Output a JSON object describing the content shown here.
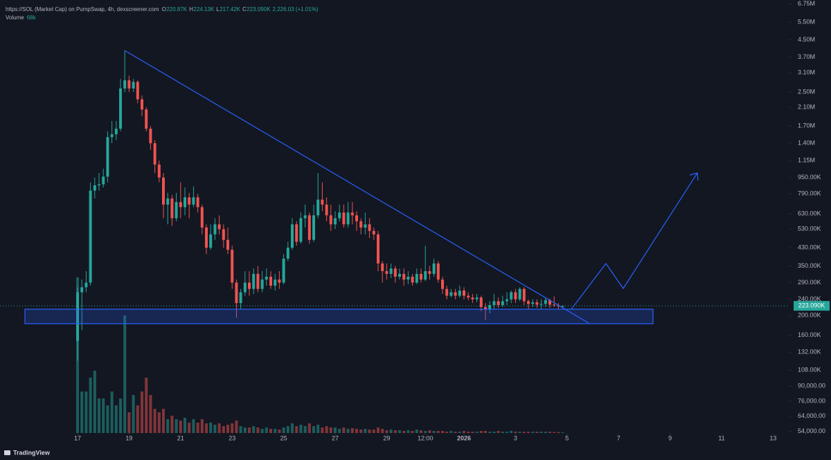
{
  "chart_data": {
    "type": "candlestick",
    "header": {
      "title": "https://SOL (Market Cap) on PumpSwap, 4h, dexscreener.com",
      "ohlc": [
        {
          "key": "O",
          "value": "220.87K"
        },
        {
          "key": "H",
          "value": "224.13K"
        },
        {
          "key": "L",
          "value": "217.42K"
        },
        {
          "key": "C",
          "value": "223.090K"
        }
      ],
      "change": "2,226.03 (+1.01%)"
    },
    "last_price_label": "223.090K",
    "up_color": "#26a69a",
    "down_color": "#ef5350",
    "log_scale": true,
    "xlim": [
      -3.011,
      27.634
    ],
    "xticks": [
      {
        "value": 0,
        "label": "17"
      },
      {
        "value": 2,
        "label": "19"
      },
      {
        "value": 4,
        "label": "21"
      },
      {
        "value": 6,
        "label": "23"
      },
      {
        "value": 8,
        "label": "25"
      },
      {
        "value": 10,
        "label": "27"
      },
      {
        "value": 12,
        "label": "29"
      },
      {
        "value": 13.5,
        "label": "12:00"
      },
      {
        "value": 15,
        "label": "2026"
      },
      {
        "value": 17,
        "label": "3"
      },
      {
        "value": 19,
        "label": "5"
      },
      {
        "value": 21,
        "label": "7"
      },
      {
        "value": 23,
        "label": "9"
      },
      {
        "value": 25,
        "label": "11"
      },
      {
        "value": 27,
        "label": "13"
      }
    ],
    "ylim": [
      53000,
      7062000
    ],
    "yticks": [
      {
        "value": 6750000,
        "label": "6.75M"
      },
      {
        "value": 5500000,
        "label": "5.50M"
      },
      {
        "value": 4500000,
        "label": "4.50M"
      },
      {
        "value": 3700000,
        "label": "3.70M"
      },
      {
        "value": 3100000,
        "label": "3.10M"
      },
      {
        "value": 2500000,
        "label": "2.50M"
      },
      {
        "value": 2100000,
        "label": "2.10M"
      },
      {
        "value": 1700000,
        "label": "1.70M"
      },
      {
        "value": 1400000,
        "label": "1.40M"
      },
      {
        "value": 1150000,
        "label": "1.15M"
      },
      {
        "value": 950000,
        "label": "950.00K"
      },
      {
        "value": 790000,
        "label": "790.00K"
      },
      {
        "value": 630000,
        "label": "630.00K"
      },
      {
        "value": 530000,
        "label": "530.00K"
      },
      {
        "value": 430000,
        "label": "430.00K"
      },
      {
        "value": 350000,
        "label": "350.00K"
      },
      {
        "value": 290000,
        "label": "290.00K"
      },
      {
        "value": 240000,
        "label": "240.00K"
      },
      {
        "value": 200000,
        "label": "200.00K"
      },
      {
        "value": 160000,
        "label": "160.00K"
      },
      {
        "value": 132000,
        "label": "132.00K"
      },
      {
        "value": 108000,
        "label": "108.00K"
      },
      {
        "value": 90000,
        "label": "90,000.00"
      },
      {
        "value": 76000,
        "label": "76,000.00"
      },
      {
        "value": 64000,
        "label": "64,000.00"
      },
      {
        "value": 54000,
        "label": "54,000.00"
      }
    ],
    "x": [
      0,
      0.167,
      0.333,
      0.5,
      0.667,
      0.833,
      1,
      1.167,
      1.333,
      1.5,
      1.667,
      1.833,
      2,
      2.167,
      2.333,
      2.5,
      2.667,
      2.833,
      3,
      3.167,
      3.333,
      3.5,
      3.667,
      3.833,
      4,
      4.167,
      4.333,
      4.5,
      4.667,
      4.833,
      5,
      5.167,
      5.333,
      5.5,
      5.667,
      5.833,
      6,
      6.167,
      6.333,
      6.5,
      6.667,
      6.833,
      7,
      7.167,
      7.333,
      7.5,
      7.667,
      7.833,
      8,
      8.167,
      8.333,
      8.5,
      8.667,
      8.833,
      9,
      9.167,
      9.333,
      9.5,
      9.667,
      9.833,
      10,
      10.167,
      10.333,
      10.5,
      10.667,
      10.833,
      11,
      11.167,
      11.333,
      11.5,
      11.667,
      11.833,
      12,
      12.167,
      12.333,
      12.5,
      12.667,
      12.833,
      13,
      13.167,
      13.333,
      13.5,
      13.667,
      13.833,
      14,
      14.167,
      14.333,
      14.5,
      14.667,
      14.833,
      15,
      15.167,
      15.333,
      15.5,
      15.667,
      15.833,
      16,
      16.167,
      16.333,
      16.5,
      16.667,
      16.833,
      17,
      17.167,
      17.333,
      17.5,
      17.667,
      17.833,
      18,
      18.167,
      18.333,
      18.5,
      18.667,
      18.833
    ],
    "open": [
      150000,
      260000,
      275000,
      290000,
      820000,
      870000,
      880000,
      960000,
      1500000,
      1550000,
      1650000,
      2600000,
      2850000,
      2600000,
      2800000,
      2300000,
      2050000,
      1650000,
      1400000,
      1100000,
      950000,
      700000,
      750000,
      600000,
      720000,
      680000,
      760000,
      700000,
      760000,
      680000,
      540000,
      430000,
      500000,
      560000,
      530000,
      470000,
      420000,
      290000,
      230000,
      260000,
      290000,
      270000,
      320000,
      270000,
      300000,
      310000,
      280000,
      300000,
      290000,
      380000,
      430000,
      560000,
      460000,
      600000,
      620000,
      470000,
      620000,
      740000,
      700000,
      620000,
      560000,
      600000,
      640000,
      560000,
      640000,
      620000,
      580000,
      540000,
      560000,
      520000,
      500000,
      360000,
      330000,
      320000,
      340000,
      310000,
      320000,
      300000,
      310000,
      290000,
      320000,
      300000,
      330000,
      320000,
      360000,
      300000,
      270000,
      250000,
      260000,
      250000,
      265000,
      250000,
      245000,
      240000,
      245000,
      220000,
      215000,
      225000,
      235000,
      225000,
      235000,
      240000,
      260000,
      240000,
      270000,
      235000,
      228000,
      232000,
      226000,
      228000,
      238000,
      226000,
      224000,
      220870
    ],
    "high": [
      275000,
      300000,
      330000,
      900000,
      950000,
      1000000,
      1050000,
      1600000,
      1800000,
      1800000,
      2900000,
      4000000,
      3000000,
      2900000,
      2850000,
      2400000,
      2100000,
      1700000,
      1450000,
      1150000,
      1000000,
      800000,
      780000,
      800000,
      900000,
      850000,
      800000,
      860000,
      790000,
      700000,
      560000,
      560000,
      600000,
      620000,
      560000,
      540000,
      440000,
      300000,
      270000,
      330000,
      330000,
      340000,
      350000,
      330000,
      340000,
      330000,
      320000,
      330000,
      400000,
      460000,
      600000,
      580000,
      640000,
      700000,
      640000,
      700000,
      1000000,
      900000,
      760000,
      700000,
      650000,
      700000,
      700000,
      720000,
      720000,
      650000,
      600000,
      640000,
      600000,
      540000,
      520000,
      370000,
      360000,
      360000,
      350000,
      340000,
      340000,
      330000,
      320000,
      340000,
      340000,
      440000,
      350000,
      380000,
      370000,
      310000,
      280000,
      270000,
      270000,
      280000,
      275000,
      260000,
      255000,
      255000,
      250000,
      230000,
      235000,
      255000,
      245000,
      250000,
      260000,
      265000,
      270000,
      275000,
      275000,
      240000,
      240000,
      240000,
      240000,
      245000,
      242000,
      248000,
      230000,
      224130
    ],
    "low": [
      120000,
      170000,
      260000,
      280000,
      750000,
      820000,
      850000,
      900000,
      1400000,
      1450000,
      1600000,
      2500000,
      2500000,
      2500000,
      2200000,
      1900000,
      1600000,
      1300000,
      1000000,
      900000,
      600000,
      560000,
      550000,
      580000,
      600000,
      620000,
      600000,
      680000,
      640000,
      500000,
      400000,
      420000,
      470000,
      500000,
      430000,
      400000,
      270000,
      195000,
      215000,
      250000,
      250000,
      255000,
      260000,
      260000,
      280000,
      270000,
      265000,
      270000,
      285000,
      370000,
      420000,
      440000,
      450000,
      540000,
      450000,
      460000,
      600000,
      650000,
      580000,
      520000,
      530000,
      580000,
      540000,
      540000,
      560000,
      520000,
      500000,
      500000,
      480000,
      470000,
      330000,
      290000,
      300000,
      305000,
      290000,
      300000,
      280000,
      285000,
      280000,
      285000,
      290000,
      295000,
      300000,
      310000,
      290000,
      255000,
      240000,
      245000,
      240000,
      245000,
      240000,
      238000,
      230000,
      232000,
      210000,
      190000,
      205000,
      215000,
      218000,
      220000,
      225000,
      230000,
      230000,
      235000,
      225000,
      215000,
      220000,
      218000,
      215000,
      220000,
      218000,
      220000,
      216000,
      217420
    ],
    "close": [
      260000,
      275000,
      290000,
      820000,
      870000,
      880000,
      960000,
      1500000,
      1550000,
      1650000,
      2600000,
      2850000,
      2600000,
      2800000,
      2300000,
      2050000,
      1650000,
      1400000,
      1100000,
      950000,
      700000,
      750000,
      600000,
      720000,
      680000,
      760000,
      700000,
      760000,
      680000,
      540000,
      430000,
      500000,
      560000,
      530000,
      470000,
      420000,
      290000,
      230000,
      260000,
      290000,
      270000,
      320000,
      270000,
      300000,
      310000,
      280000,
      300000,
      290000,
      380000,
      430000,
      560000,
      460000,
      600000,
      620000,
      470000,
      620000,
      740000,
      700000,
      620000,
      560000,
      600000,
      640000,
      560000,
      640000,
      620000,
      580000,
      540000,
      560000,
      520000,
      500000,
      360000,
      330000,
      320000,
      340000,
      310000,
      320000,
      300000,
      310000,
      290000,
      320000,
      300000,
      330000,
      320000,
      360000,
      300000,
      270000,
      250000,
      260000,
      250000,
      265000,
      250000,
      245000,
      240000,
      245000,
      220000,
      215000,
      225000,
      235000,
      225000,
      235000,
      240000,
      260000,
      240000,
      270000,
      235000,
      228000,
      232000,
      226000,
      228000,
      238000,
      226000,
      224000,
      222000,
      223090
    ],
    "volume": {
      "name": "Volume",
      "value_label": "68k",
      "values": [
        15300000,
        4080000,
        4080000,
        5440000,
        6120000,
        3400000,
        3400000,
        2720000,
        4080000,
        2720000,
        3400000,
        11560000,
        2040000,
        3740000,
        2720000,
        4080000,
        5440000,
        3740000,
        2380000,
        2040000,
        2380000,
        1360000,
        1700000,
        1360000,
        1224000,
        1496000,
        1020000,
        1360000,
        1020000,
        1360000,
        952000,
        1020000,
        816000,
        952000,
        680000,
        816000,
        952000,
        1224000,
        680000,
        544000,
        544000,
        680000,
        544000,
        408000,
        544000,
        408000,
        408000,
        340000,
        544000,
        680000,
        952000,
        680000,
        816000,
        680000,
        952000,
        680000,
        816000,
        544000,
        680000,
        544000,
        544000,
        408000,
        544000,
        408000,
        476000,
        408000,
        340000,
        408000,
        340000,
        340000,
        544000,
        408000,
        272000,
        340000,
        272000,
        272000,
        204000,
        272000,
        204000,
        340000,
        272000,
        204000,
        272000,
        204000,
        204000,
        204000,
        136000,
        204000,
        136000,
        136000,
        204000,
        136000,
        136000,
        136000,
        204000,
        204000,
        136000,
        136000,
        204000,
        136000,
        136000,
        204000,
        136000,
        136000,
        136000,
        136000,
        136000,
        136000,
        136000,
        136000,
        136000,
        102000,
        102000,
        68000
      ]
    }
  },
  "footer": {
    "brand": "TradingView"
  }
}
